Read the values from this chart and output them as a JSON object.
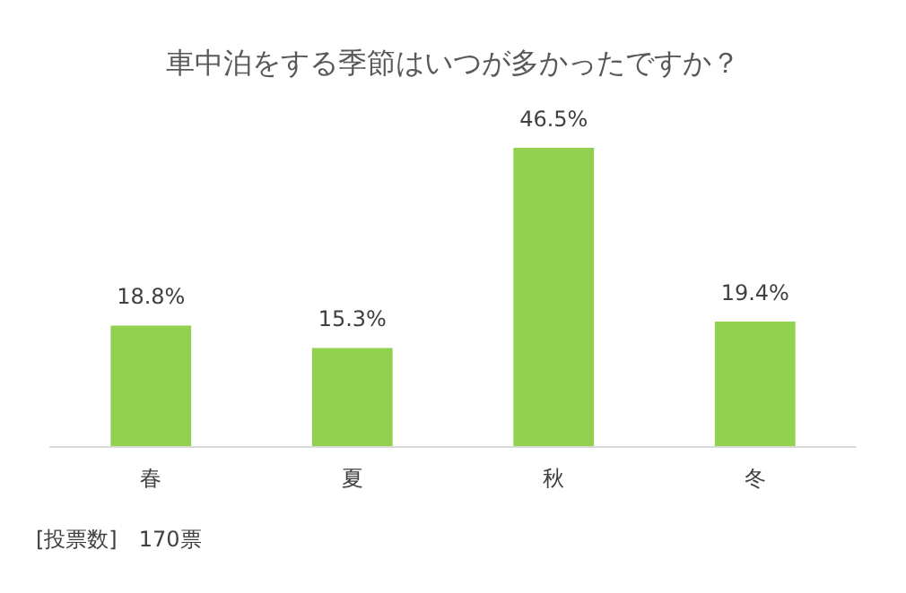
{
  "chart_data": {
    "type": "bar",
    "title": "車中泊をする季節はいつが多かったですか？",
    "categories": [
      "春",
      "夏",
      "秋",
      "冬"
    ],
    "values": [
      18.8,
      15.3,
      46.5,
      19.4
    ],
    "color": "#92d050",
    "value_labels": [
      "18.8%",
      "15.3%",
      "46.5%",
      "19.4%"
    ],
    "annotations": [
      "[投票数]　170票"
    ]
  }
}
